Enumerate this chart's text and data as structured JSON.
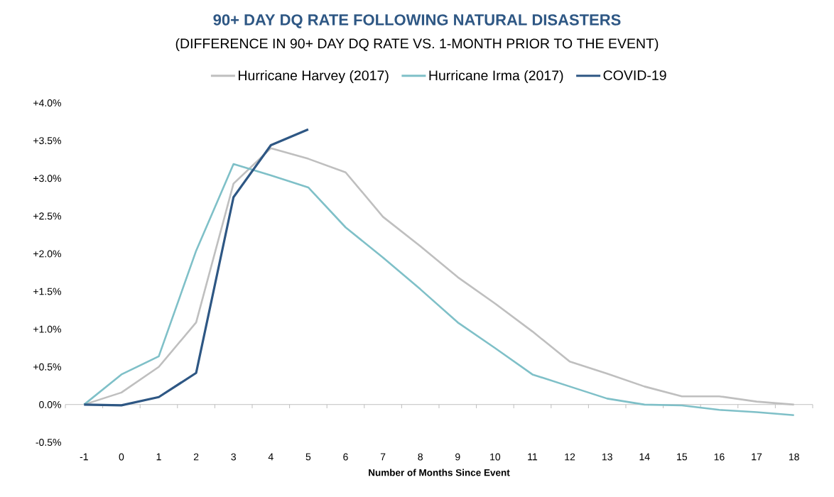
{
  "chart_data": {
    "type": "line",
    "title": "90+ DAY DQ RATE FOLLOWING NATURAL DISASTERS",
    "subtitle": "(DIFFERENCE IN 90+ DAY DQ RATE VS. 1-MONTH PRIOR TO THE EVENT)",
    "xlabel": "Number of Months Since Event",
    "categories": [
      "-1",
      "0",
      "1",
      "2",
      "3",
      "4",
      "5",
      "6",
      "7",
      "8",
      "9",
      "10",
      "11",
      "12",
      "13",
      "14",
      "15",
      "16",
      "17",
      "18"
    ],
    "series": [
      {
        "name": "Hurricane Harvey (2017)",
        "color": "#bfbfbf",
        "values": [
          0,
          0.16,
          0.5,
          1.09,
          2.93,
          3.4,
          3.26,
          3.08,
          2.49,
          2.1,
          1.69,
          1.34,
          0.97,
          0.57,
          0.41,
          0.24,
          0.11,
          0.11,
          0.04,
          0.0
        ]
      },
      {
        "name": "Hurricane Irma (2017)",
        "color": "#7fc0c8",
        "values": [
          0,
          0.4,
          0.64,
          2.04,
          3.19,
          3.04,
          2.88,
          2.35,
          1.95,
          1.53,
          1.09,
          0.75,
          0.4,
          0.24,
          0.08,
          0.0,
          -0.01,
          -0.07,
          -0.1,
          -0.14
        ]
      },
      {
        "name": "COVID-19",
        "color": "#2e5784",
        "values": [
          0,
          -0.01,
          0.1,
          0.42,
          2.75,
          3.44,
          3.65,
          null,
          null,
          null,
          null,
          null,
          null,
          null,
          null,
          null,
          null,
          null,
          null,
          null
        ]
      }
    ],
    "ylim": [
      -0.5,
      4.0
    ],
    "yticks": [
      {
        "value": -0.5,
        "label": "-0.5%"
      },
      {
        "value": 0,
        "label": "0.0%"
      },
      {
        "value": 0.5,
        "label": "+0.5%"
      },
      {
        "value": 1.0,
        "label": "+1.0%"
      },
      {
        "value": 1.5,
        "label": "+1.5%"
      },
      {
        "value": 2.0,
        "label": "+2.0%"
      },
      {
        "value": 2.5,
        "label": "+2.5%"
      },
      {
        "value": 3.0,
        "label": "+3.0%"
      },
      {
        "value": 3.5,
        "label": "+3.5%"
      },
      {
        "value": 4.0,
        "label": "+4.0%"
      }
    ],
    "legend": "top",
    "marker": "none",
    "line_style": "solid"
  }
}
